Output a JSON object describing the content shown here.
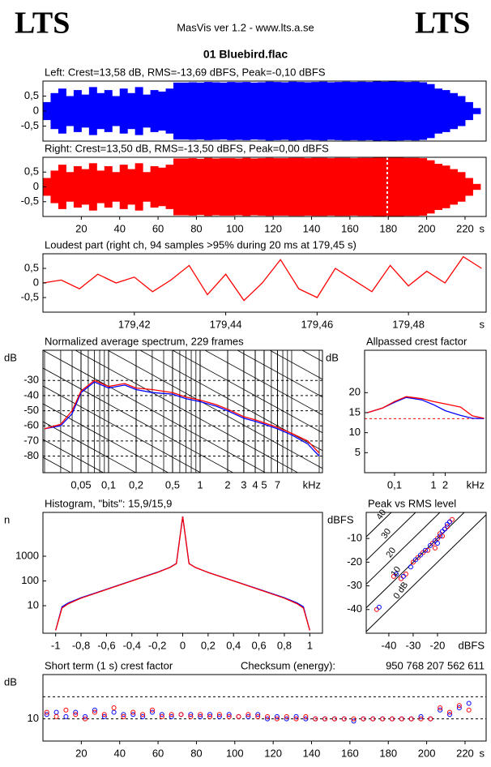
{
  "header": {
    "logo_left": "LTS",
    "app": "MasVis ver 1.2 - www.lts.a.se",
    "logo_right": "LTS",
    "file": "01 Bluebird.flac"
  },
  "chart_data": [
    {
      "type": "waveform",
      "title": "Left: Crest=13,58 dB, RMS=-13,69 dBFS, Peak=-0,10 dBFS",
      "xlim": [
        0,
        231
      ],
      "ylim": [
        -1,
        1
      ],
      "yticks": [
        {
          "value": 0.5,
          "label": "0,5"
        },
        0,
        {
          "value": -0.5,
          "label": "-0,5"
        }
      ],
      "x": [
        0,
        4,
        8,
        12,
        16,
        20,
        24,
        28,
        32,
        36,
        40,
        44,
        48,
        52,
        56,
        60,
        64,
        68,
        72,
        76,
        80,
        84,
        88,
        92,
        96,
        100,
        104,
        108,
        112,
        116,
        120,
        124,
        128,
        132,
        136,
        140,
        144,
        148,
        152,
        156,
        160,
        164,
        168,
        172,
        176,
        180,
        184,
        188,
        192,
        196,
        200,
        204,
        208,
        212,
        216,
        220,
        224
      ],
      "series": [
        {
          "color": "#0000ff",
          "values": [
            0.3,
            0.6,
            0.75,
            0.5,
            0.7,
            0.55,
            0.8,
            0.6,
            0.7,
            0.5,
            0.75,
            0.6,
            0.8,
            0.55,
            0.7,
            0.65,
            0.75,
            0.95,
            0.95,
            0.96,
            0.95,
            0.97,
            0.96,
            0.95,
            0.97,
            0.96,
            0.97,
            0.95,
            0.96,
            0.98,
            0.97,
            0.96,
            0.98,
            0.97,
            0.96,
            0.97,
            0.98,
            0.96,
            0.97,
            0.98,
            0.97,
            0.98,
            0.97,
            0.99,
            0.98,
            0.99,
            0.98,
            0.97,
            0.98,
            0.96,
            0.9,
            0.75,
            0.7,
            0.6,
            0.5,
            0.3,
            0.1
          ]
        }
      ]
    },
    {
      "type": "waveform",
      "title": "Right: Crest=13,50 dB, RMS=-13,50 dBFS, Peak=0,00 dBFS",
      "xlim": [
        0,
        231
      ],
      "ylim": [
        -1,
        1
      ],
      "x_unit": "s",
      "marker_x": 179.45,
      "yticks": [
        {
          "value": 0.5,
          "label": "0,5"
        },
        0,
        {
          "value": -0.5,
          "label": "-0,5"
        }
      ],
      "xticks": [
        20,
        40,
        60,
        80,
        100,
        120,
        140,
        160,
        180,
        200,
        220
      ],
      "x": [
        0,
        4,
        8,
        12,
        16,
        20,
        24,
        28,
        32,
        36,
        40,
        44,
        48,
        52,
        56,
        60,
        64,
        68,
        72,
        76,
        80,
        84,
        88,
        92,
        96,
        100,
        104,
        108,
        112,
        116,
        120,
        124,
        128,
        132,
        136,
        140,
        144,
        148,
        152,
        156,
        160,
        164,
        168,
        172,
        176,
        180,
        184,
        188,
        192,
        196,
        200,
        204,
        208,
        212,
        216,
        220,
        224
      ],
      "series": [
        {
          "color": "#ff0000",
          "values": [
            0.3,
            0.55,
            0.75,
            0.5,
            0.7,
            0.6,
            0.8,
            0.55,
            0.7,
            0.5,
            0.75,
            0.6,
            0.8,
            0.5,
            0.7,
            0.65,
            0.75,
            0.96,
            0.96,
            0.97,
            0.95,
            0.98,
            0.96,
            0.97,
            0.97,
            0.96,
            0.98,
            0.96,
            0.97,
            0.98,
            0.97,
            0.97,
            0.98,
            0.98,
            0.97,
            0.98,
            0.98,
            0.97,
            0.98,
            0.98,
            0.97,
            0.98,
            0.98,
            0.99,
            0.99,
            1.0,
            0.99,
            0.98,
            0.98,
            0.97,
            0.9,
            0.78,
            0.72,
            0.6,
            0.5,
            0.3,
            0.1
          ]
        }
      ]
    },
    {
      "type": "line",
      "title": "Loudest part (right ch, 94 samples >95% during 20 ms at 179,45 s)",
      "xlim": [
        179.4,
        179.497
      ],
      "ylim": [
        -1,
        1
      ],
      "x_unit": "s",
      "yticks": [
        {
          "value": 0.5,
          "label": "0,5"
        },
        0,
        {
          "value": -0.5,
          "label": "-0,5"
        }
      ],
      "xticks": [
        {
          "value": 179.42,
          "label": "179,42"
        },
        {
          "value": 179.44,
          "label": "179,44"
        },
        {
          "value": 179.46,
          "label": "179,46"
        },
        {
          "value": 179.48,
          "label": "179,48"
        }
      ],
      "x": [
        179.4,
        179.404,
        179.408,
        179.412,
        179.416,
        179.42,
        179.424,
        179.428,
        179.432,
        179.436,
        179.44,
        179.444,
        179.448,
        179.452,
        179.456,
        179.46,
        179.464,
        179.468,
        179.472,
        179.476,
        179.48,
        179.484,
        179.488,
        179.492,
        179.496
      ],
      "series": [
        {
          "color": "#ff0000",
          "values": [
            0.0,
            0.1,
            -0.2,
            0.3,
            0.0,
            0.2,
            -0.3,
            0.1,
            0.6,
            -0.4,
            0.3,
            -0.6,
            0.0,
            0.8,
            -0.2,
            -0.5,
            0.5,
            0.1,
            -0.3,
            0.6,
            -0.1,
            0.4,
            0.0,
            0.9,
            0.5
          ]
        }
      ]
    },
    {
      "type": "line",
      "title": "Normalized average spectrum, 229 frames",
      "ylabel": "dB",
      "x_unit": "kHz",
      "xscale": "log",
      "grid": true,
      "xgrid": true,
      "xlim": [
        0.0192,
        21.7
      ],
      "ylim": [
        -91,
        -10
      ],
      "yticks": [
        -30,
        -40,
        -50,
        -60,
        -70,
        -80
      ],
      "xticks": [
        {
          "value": 0.05,
          "label": "0,05"
        },
        {
          "value": 0.1,
          "label": "0,1"
        },
        {
          "value": 0.2,
          "label": "0,2"
        },
        {
          "value": 0.5,
          "label": "0,5"
        },
        1,
        2,
        3,
        4,
        5,
        7
      ],
      "x": [
        0.02,
        0.03,
        0.04,
        0.05,
        0.07,
        0.1,
        0.15,
        0.2,
        0.3,
        0.5,
        0.7,
        1,
        1.5,
        2,
        3,
        4,
        5,
        7,
        10,
        15,
        20
      ],
      "series": [
        {
          "color": "#0000ff",
          "values": [
            -62,
            -60,
            -52,
            -38,
            -31,
            -35,
            -33,
            -36,
            -38,
            -39,
            -42,
            -44,
            -47,
            -50,
            -55,
            -57,
            -59,
            -62,
            -66,
            -72,
            -80
          ]
        },
        {
          "color": "#ff0000",
          "values": [
            -62,
            -59,
            -50,
            -37,
            -30,
            -34,
            -32,
            -35,
            -36,
            -38,
            -41,
            -43,
            -46,
            -49,
            -54,
            -56,
            -58,
            -61,
            -65,
            -70,
            -78
          ]
        }
      ]
    },
    {
      "type": "line",
      "title": "Allpassed crest factor",
      "ylabel": "dB",
      "x_unit": "kHz",
      "xscale": "log",
      "xlim": [
        0.017,
        22.6
      ],
      "ylim": [
        0,
        30.6
      ],
      "ref_lines": [
        13.5
      ],
      "ref_color": "#ff0000",
      "yticks": [
        20,
        15,
        10,
        5
      ],
      "xticks": [
        {
          "value": 0.1,
          "label": "0,1"
        },
        1,
        2
      ],
      "x": [
        0.02,
        0.05,
        0.1,
        0.2,
        0.5,
        1,
        2,
        5,
        10,
        20
      ],
      "series": [
        {
          "color": "#0000ff",
          "values": [
            15,
            16.2,
            17.6,
            18.8,
            18.2,
            17,
            15.5,
            14.3,
            13.6,
            13.5
          ]
        },
        {
          "color": "#ff0000",
          "values": [
            15,
            16.2,
            17.8,
            19,
            18.5,
            17.8,
            17.2,
            16.4,
            14.2,
            13.6
          ]
        }
      ]
    },
    {
      "type": "line",
      "title": "Histogram, \"bits\": 15,9/15,9",
      "ylabel": "n",
      "yscale": "log",
      "xlim": [
        -1.1,
        1.1
      ],
      "ylim": [
        0.77,
        59000
      ],
      "yticks": [
        1000,
        100,
        10
      ],
      "xticks": [
        -1,
        {
          "value": -0.8,
          "label": "-0,8"
        },
        {
          "value": -0.6,
          "label": "-0,6"
        },
        {
          "value": -0.4,
          "label": "-0,4"
        },
        {
          "value": -0.2,
          "label": "-0,2"
        },
        0,
        {
          "value": 0.2,
          "label": "0,2"
        },
        {
          "value": 0.4,
          "label": "0,4"
        },
        {
          "value": 0.6,
          "label": "0,6"
        },
        {
          "value": 0.8,
          "label": "0,8"
        },
        1
      ],
      "x": [
        -1,
        -0.95,
        -0.9,
        -0.8,
        -0.6,
        -0.4,
        -0.2,
        -0.1,
        -0.05,
        0,
        0.05,
        0.1,
        0.2,
        0.4,
        0.6,
        0.8,
        0.9,
        0.95,
        1
      ],
      "series": [
        {
          "color": "#0000ff",
          "values": [
            1,
            9,
            13,
            21,
            46,
            102,
            225,
            355,
            510,
            40000,
            505,
            352,
            222,
            101,
            46,
            21,
            13,
            9,
            1
          ]
        },
        {
          "color": "#ff0000",
          "values": [
            1,
            8,
            12,
            20,
            45,
            100,
            220,
            350,
            500,
            40000,
            500,
            350,
            220,
            100,
            45,
            20,
            12,
            8,
            1
          ]
        }
      ]
    },
    {
      "type": "scatter",
      "title": "Peak vs RMS level",
      "ylabel": "dBFS",
      "x_unit": "dBFS",
      "xlim": [
        -49.3,
        0
      ],
      "ylim": [
        -50,
        1
      ],
      "yticks": [
        -10,
        -20,
        -30,
        -40
      ],
      "xticks": [
        -40,
        -30,
        -20
      ],
      "diagonals": [
        {
          "value": 0,
          "label": "0 dB"
        },
        10,
        20,
        30,
        40
      ],
      "series": [
        {
          "color": "#ff0000",
          "x": [
            -45,
            -38,
            -35,
            -33,
            -30,
            -28,
            -26,
            -24,
            -22,
            -21,
            -20,
            -19,
            -18,
            -17,
            -16,
            -15,
            -14
          ],
          "values": [
            -40,
            -26,
            -27,
            -25,
            -20,
            -18,
            -16,
            -15,
            -12,
            -14,
            -10,
            -8,
            -9,
            -6,
            -5,
            -3,
            -2
          ]
        },
        {
          "color": "#0000ff",
          "x": [
            -44,
            -37,
            -34,
            -31,
            -29,
            -27,
            -25,
            -23,
            -21,
            -20,
            -19,
            -18,
            -17,
            -16,
            -15
          ],
          "values": [
            -39,
            -25,
            -26,
            -22,
            -19,
            -17,
            -15,
            -13,
            -11,
            -12,
            -9,
            -7,
            -6,
            -4,
            -3
          ]
        }
      ]
    },
    {
      "type": "scatter",
      "title": "Short term (1 s) crest factor",
      "checksum_label": "Checksum (energy):",
      "checksum": "950 768 207 562 611",
      "ylabel": "dB",
      "x_unit": "s",
      "grid": true,
      "ref_lines": [
        20
      ],
      "ref_color": "#000000",
      "xlim": [
        0,
        231
      ],
      "ylim": [
        0,
        30
      ],
      "yticks": [
        10
      ],
      "xticks": [
        20,
        40,
        60,
        80,
        100,
        120,
        140,
        160,
        180,
        200,
        220
      ],
      "x": [
        2,
        7,
        12,
        17,
        22,
        27,
        32,
        37,
        42,
        47,
        52,
        57,
        62,
        67,
        72,
        77,
        82,
        87,
        92,
        97,
        102,
        107,
        112,
        117,
        122,
        127,
        132,
        137,
        142,
        147,
        152,
        157,
        162,
        167,
        172,
        177,
        182,
        187,
        192,
        197,
        202,
        207,
        212,
        217,
        222
      ],
      "series": [
        {
          "color": "#0000ff",
          "values": [
            12,
            13,
            11,
            13,
            11,
            14,
            11,
            13,
            12,
            12,
            11,
            13,
            12,
            11,
            12,
            12,
            11,
            12,
            11,
            12,
            11,
            11,
            12,
            10,
            11,
            10,
            11,
            10,
            10,
            10,
            10,
            10,
            9,
            10,
            10,
            10,
            10,
            10,
            10,
            11,
            10,
            14,
            12,
            15,
            17
          ]
        },
        {
          "color": "#ff0000",
          "values": [
            13,
            11,
            14,
            12,
            10,
            13,
            12,
            15,
            11,
            13,
            12,
            14,
            11,
            12,
            12,
            11,
            12,
            11,
            12,
            11,
            11,
            12,
            11,
            11,
            10,
            11,
            10,
            11,
            10,
            10,
            10,
            10,
            10,
            10,
            10,
            10,
            10,
            10,
            10,
            10,
            10,
            15,
            13,
            16,
            14
          ]
        }
      ]
    }
  ]
}
